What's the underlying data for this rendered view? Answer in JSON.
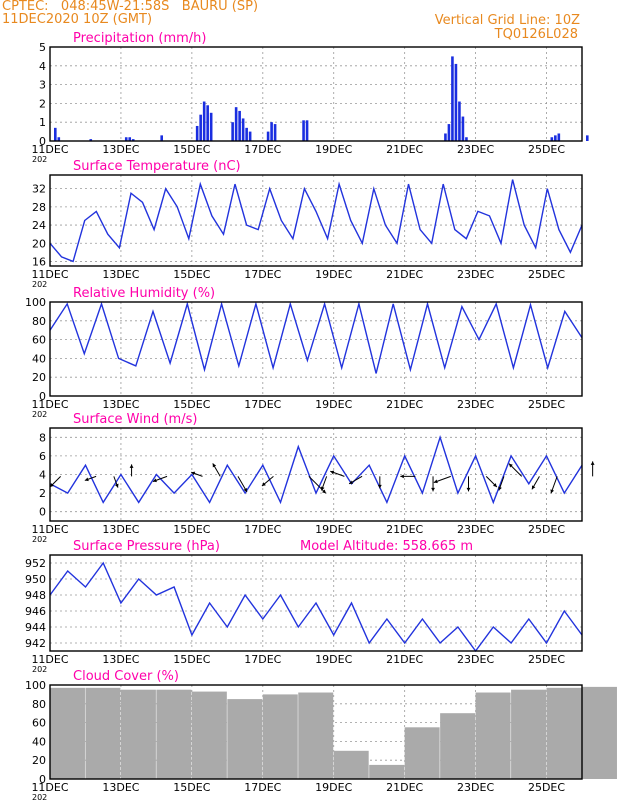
{
  "header": {
    "location_line": "CPTEC:   048:45W-21:58S   BAURU (SP)",
    "init_line": "11DEC2020 10Z (GMT)",
    "grid_note": "Vertical Grid Line: 10Z",
    "model_code": "TQ0126L028"
  },
  "colors": {
    "header_text": "#e8891f",
    "panel_title": "#ff00aa",
    "series_line": "#2233dd",
    "precip_bars": "#1a2ee0",
    "cloud_bars": "#aaaaaa",
    "wind_arrows": "#000000",
    "grid": "#999999"
  },
  "x_axis_labels": [
    "11DEC",
    "13DEC",
    "15DEC",
    "17DEC",
    "19DEC",
    "21DEC",
    "23DEC",
    "25DEC"
  ],
  "year_stub": "202",
  "chart_data": [
    {
      "type": "bar",
      "title": "Precipitation  (mm/h)",
      "ylim": [
        0,
        5
      ],
      "yticks": [
        0,
        1,
        2,
        3,
        4,
        5
      ],
      "x": [
        "11DEC",
        "11DEC",
        "12DEC",
        "13DEC",
        "13DEC",
        "13DEC",
        "14DEC",
        "15DEC",
        "15DEC",
        "15DEC",
        "15DEC",
        "15DEC",
        "16DEC",
        "16DEC",
        "16DEC",
        "16DEC",
        "16DEC",
        "16DEC",
        "17DEC",
        "17DEC",
        "17DEC",
        "18DEC",
        "18DEC",
        "22DEC",
        "22DEC",
        "22DEC",
        "22DEC",
        "22DEC",
        "22DEC",
        "22DEC",
        "25DEC",
        "25DEC",
        "25DEC",
        "26DEC"
      ],
      "values": [
        0.7,
        0.2,
        0.1,
        0.2,
        0.2,
        0.1,
        0.3,
        0.8,
        1.4,
        2.1,
        1.9,
        1.5,
        1.0,
        1.8,
        1.6,
        1.2,
        0.7,
        0.5,
        0.5,
        1.0,
        0.9,
        1.1,
        1.1,
        0.4,
        0.9,
        4.5,
        4.1,
        2.1,
        1.3,
        0.2,
        0.2,
        0.3,
        0.4,
        0.3
      ]
    },
    {
      "type": "line",
      "title": "Surface Temperature  (nC)",
      "ylim": [
        15,
        35
      ],
      "yticks": [
        16,
        20,
        24,
        28,
        32
      ],
      "x": [
        "11DEC",
        "11DEC",
        "11DEC",
        "12DEC",
        "12DEC",
        "12DEC",
        "12DEC",
        "13DEC",
        "13DEC",
        "13DEC",
        "14DEC",
        "14DEC",
        "14DEC",
        "15DEC",
        "15DEC",
        "15DEC",
        "16DEC",
        "16DEC",
        "16DEC",
        "17DEC",
        "17DEC",
        "17DEC",
        "18DEC",
        "18DEC",
        "18DEC",
        "19DEC",
        "19DEC",
        "19DEC",
        "20DEC",
        "20DEC",
        "20DEC",
        "21DEC",
        "21DEC",
        "21DEC",
        "22DEC",
        "22DEC",
        "22DEC",
        "23DEC",
        "23DEC",
        "23DEC",
        "24DEC",
        "24DEC",
        "24DEC",
        "25DEC",
        "25DEC",
        "25DEC",
        "26DEC"
      ],
      "values": [
        20,
        17,
        16,
        25,
        27,
        22,
        19,
        31,
        29,
        23,
        32,
        28,
        21,
        33,
        26,
        22,
        33,
        24,
        23,
        32,
        25,
        21,
        32,
        27,
        21,
        33,
        25,
        20,
        32,
        24,
        20,
        33,
        23,
        20,
        33,
        23,
        21,
        27,
        26,
        20,
        34,
        24,
        19,
        32,
        23,
        18,
        24
      ]
    },
    {
      "type": "line",
      "title": "Relative Humidity  (%)",
      "ylim": [
        0,
        100
      ],
      "yticks": [
        0,
        20,
        40,
        60,
        80,
        100
      ],
      "x": [
        "11DEC",
        "11DEC",
        "12DEC",
        "12DEC",
        "12DEC",
        "13DEC",
        "13DEC",
        "14DEC",
        "14DEC",
        "15DEC",
        "15DEC",
        "16DEC",
        "16DEC",
        "17DEC",
        "17DEC",
        "18DEC",
        "18DEC",
        "19DEC",
        "19DEC",
        "20DEC",
        "20DEC",
        "21DEC",
        "21DEC",
        "22DEC",
        "22DEC",
        "23DEC",
        "23DEC",
        "24DEC",
        "24DEC",
        "25DEC",
        "25DEC",
        "26DEC"
      ],
      "values": [
        70,
        98,
        45,
        98,
        40,
        32,
        90,
        35,
        98,
        28,
        98,
        32,
        98,
        30,
        98,
        38,
        98,
        30,
        98,
        24,
        98,
        28,
        98,
        30,
        95,
        60,
        98,
        30,
        97,
        30,
        90,
        62
      ]
    },
    {
      "type": "line",
      "title": "Surface Wind  (m/s)",
      "ylim": [
        -1,
        9
      ],
      "yticks": [
        0,
        2,
        4,
        6,
        8
      ],
      "x": [
        "11DEC",
        "11DEC",
        "12DEC",
        "12DEC",
        "13DEC",
        "13DEC",
        "14DEC",
        "14DEC",
        "15DEC",
        "15DEC",
        "16DEC",
        "16DEC",
        "17DEC",
        "17DEC",
        "18DEC",
        "18DEC",
        "19DEC",
        "19DEC",
        "20DEC",
        "20DEC",
        "21DEC",
        "21DEC",
        "22DEC",
        "22DEC",
        "23DEC",
        "23DEC",
        "24DEC",
        "24DEC",
        "25DEC",
        "25DEC",
        "26DEC"
      ],
      "values": [
        3,
        2,
        5,
        1,
        4,
        1,
        4,
        2,
        4,
        1,
        5,
        2,
        5,
        1,
        7,
        2,
        6,
        3,
        5,
        1,
        6,
        2,
        8,
        2,
        6,
        1,
        6,
        3,
        6,
        2,
        5
      ]
    },
    {
      "type": "line",
      "title": "Surface Pressure  (hPa)",
      "annotation": "Model Altitude: 558.665  m",
      "ylim": [
        941,
        953
      ],
      "yticks": [
        942,
        944,
        946,
        948,
        950,
        952
      ],
      "x": [
        "11DEC",
        "11DEC",
        "12DEC",
        "12DEC",
        "13DEC",
        "13DEC",
        "14DEC",
        "14DEC",
        "15DEC",
        "15DEC",
        "16DEC",
        "16DEC",
        "17DEC",
        "17DEC",
        "18DEC",
        "18DEC",
        "19DEC",
        "19DEC",
        "20DEC",
        "20DEC",
        "21DEC",
        "21DEC",
        "22DEC",
        "22DEC",
        "23DEC",
        "23DEC",
        "24DEC",
        "24DEC",
        "25DEC",
        "25DEC",
        "26DEC"
      ],
      "values": [
        948,
        951,
        949,
        952,
        947,
        950,
        948,
        949,
        943,
        947,
        944,
        948,
        945,
        948,
        944,
        947,
        943,
        947,
        942,
        945,
        942,
        945,
        942,
        944,
        941,
        944,
        942,
        945,
        942,
        946,
        943
      ]
    },
    {
      "type": "bar",
      "title": "Cloud Cover  (%)",
      "ylim": [
        0,
        100
      ],
      "yticks": [
        0,
        20,
        40,
        60,
        80,
        100
      ],
      "x": [
        "11DEC",
        "12DEC",
        "13DEC",
        "14DEC",
        "15DEC",
        "16DEC",
        "17DEC",
        "18DEC",
        "19DEC",
        "20DEC",
        "21DEC",
        "22DEC",
        "23DEC",
        "24DEC",
        "25DEC",
        "26DEC"
      ],
      "values": [
        97,
        97,
        95,
        95,
        93,
        85,
        90,
        92,
        30,
        15,
        55,
        70,
        92,
        95,
        97,
        98
      ]
    }
  ],
  "wind_vectors": {
    "x": [
      "11DEC",
      "12DEC",
      "12DEC",
      "13DEC",
      "14DEC",
      "15DEC",
      "15DEC",
      "16DEC",
      "17DEC",
      "18DEC",
      "18DEC",
      "19DEC",
      "19DEC",
      "20DEC",
      "21DEC",
      "21DEC",
      "22DEC",
      "22DEC",
      "23DEC",
      "23DEC",
      "24DEC",
      "24DEC",
      "25DEC",
      "26DEC"
    ],
    "speed": [
      3,
      2,
      2,
      2,
      3,
      2,
      3,
      4,
      3,
      6,
      3,
      3,
      3,
      2,
      3,
      3,
      4,
      3,
      3,
      3,
      4,
      3,
      4,
      3
    ],
    "direction_deg": [
      225,
      200,
      290,
      90,
      200,
      160,
      120,
      300,
      220,
      315,
      250,
      160,
      210,
      270,
      180,
      270,
      200,
      270,
      315,
      250,
      135,
      240,
      250,
      90
    ]
  }
}
